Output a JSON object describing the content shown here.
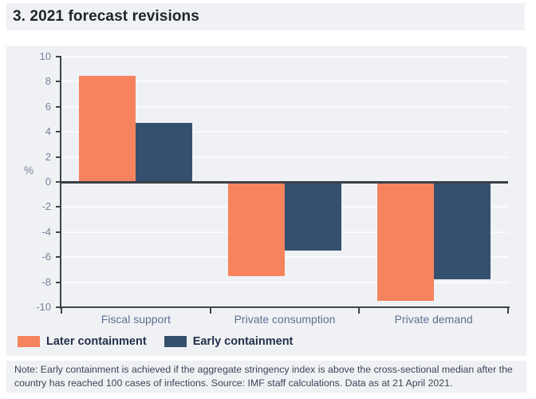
{
  "title": "3. 2021 forecast revisions",
  "chart_data": {
    "type": "bar",
    "categories": [
      "Fiscal support",
      "Private consumption",
      "Private demand"
    ],
    "series": [
      {
        "name": "Later containment",
        "color": "#f5845e",
        "values": [
          8.5,
          -7.5,
          -9.5
        ]
      },
      {
        "name": "Early containment",
        "color": "#35506e",
        "values": [
          4.7,
          -5.5,
          -7.8
        ]
      }
    ],
    "ylabel": "%",
    "ylim": [
      -10,
      10
    ],
    "ytick_step": 2,
    "grid": true,
    "legend_position": "bottom-left"
  },
  "note": "Note: Early containment is achieved if the aggregate stringency index is above the cross-sectional median after the country has reached 100 cases of infections. Source: IMF staff calculations. Data as at 21 April 2021.",
  "colors": {
    "panel_bg": "#f0f1f4",
    "later_containment": "#f5845e",
    "early_containment": "#35506e",
    "axis": "#3e434b",
    "gridline": "#fafbfc",
    "tick_label": "#74819c",
    "category_label": "#5d7093",
    "legend_text": "#22304a",
    "title_text": "#20242b",
    "note_text": "#3a4557"
  }
}
